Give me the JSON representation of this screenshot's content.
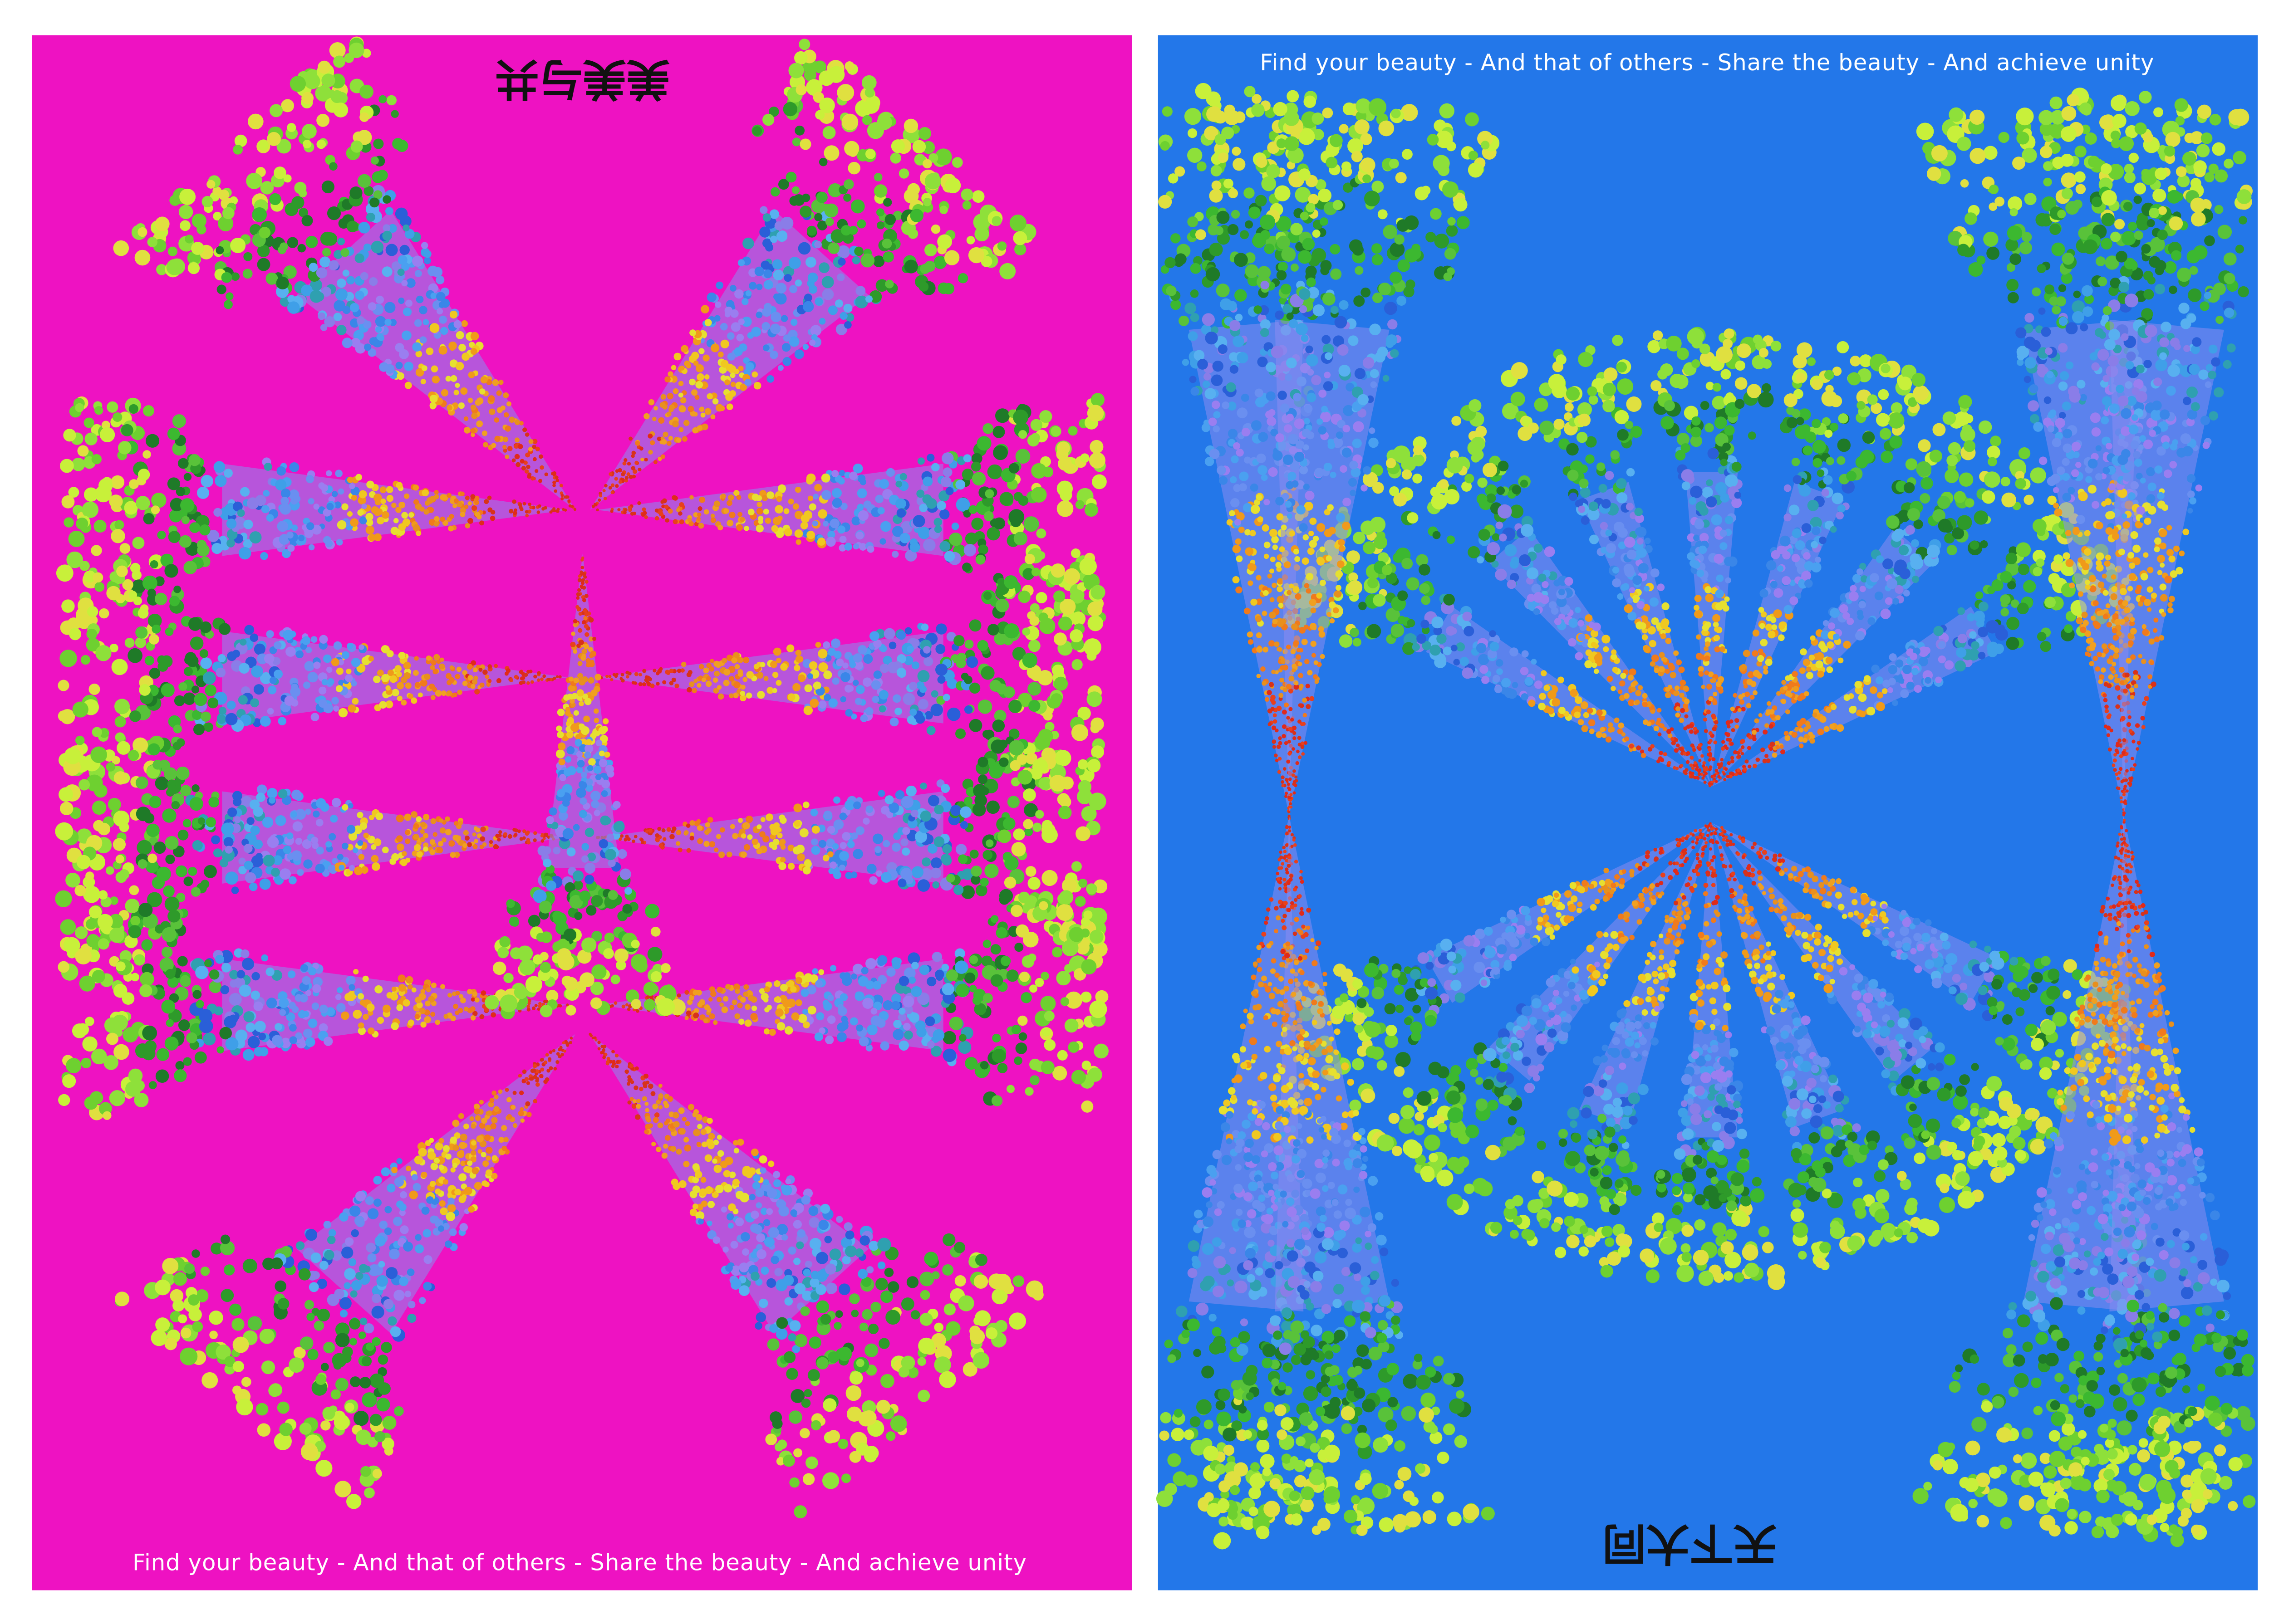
{
  "posters": [
    {
      "title": "美美与共",
      "caption": "Find your beauty - And that of others - Share the beauty - And achieve unity"
    },
    {
      "caption": "Find your beauty - And that of others - Share the beauty - And achieve unity",
      "title": "天下大同"
    }
  ]
}
